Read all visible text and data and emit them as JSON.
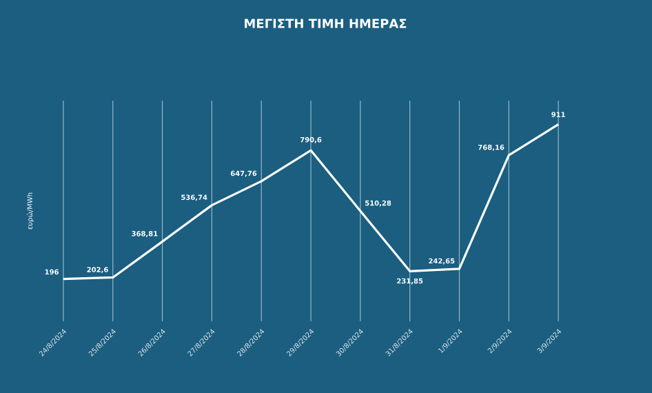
{
  "chart_data": {
    "type": "line",
    "title": "ΜΕΓΙΣΤΗ ΤΙΜΗ ΗΜΕΡΑΣ",
    "ylabel": "ευρώ/MWh",
    "categories": [
      "24/8/2024",
      "25/8/2024",
      "26/8/2024",
      "27/8/2024",
      "28/8/2024",
      "29/8/2024",
      "30/8/2024",
      "31/8/2024",
      "1/9/2024",
      "2/9/2024",
      "3/9/2024"
    ],
    "series": [
      {
        "color": "#ffffff",
        "values": [
          196,
          202.6,
          368.81,
          536.74,
          647.76,
          790.6,
          510.28,
          231.85,
          242.65,
          768.16,
          911
        ],
        "value_labels": [
          "196",
          "202,6",
          "368,81",
          "536,74",
          "647,76",
          "790,6",
          "510,28",
          "231,85",
          "242,65",
          "768,16",
          "911"
        ]
      }
    ],
    "grid": "x",
    "line_style": "solid"
  }
}
